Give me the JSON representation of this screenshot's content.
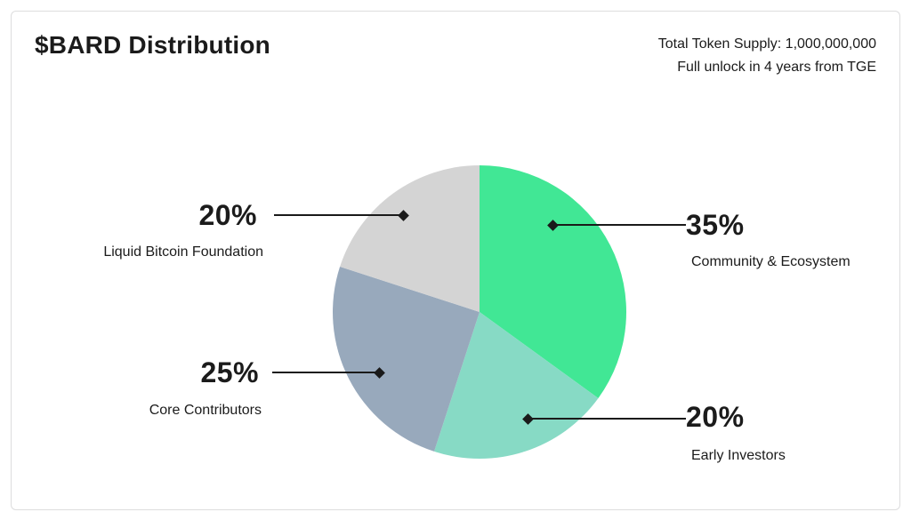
{
  "header": {
    "title": "$BARD Distribution",
    "supply_line1": "Total Token Supply: 1,000,000,000",
    "supply_line2": "Full unlock in 4 years from TGE"
  },
  "chart_data": {
    "type": "pie",
    "title": "$BARD Distribution",
    "start_angle": "12 o'clock",
    "direction": "clockwise",
    "legend_position": "callout-labels",
    "slices": [
      {
        "label": "Community & Ecosystem",
        "value": 35,
        "pct_label": "35%",
        "color": "#41E795"
      },
      {
        "label": "Early Investors",
        "value": 20,
        "pct_label": "20%",
        "color": "#87DAC5"
      },
      {
        "label": "Core Contributors",
        "value": 25,
        "pct_label": "25%",
        "color": "#98A9BC"
      },
      {
        "label": "Liquid Bitcoin Foundation",
        "value": 20,
        "pct_label": "20%",
        "color": "#D4D4D4"
      }
    ],
    "annotations": {
      "total_supply": "1,000,000,000",
      "unlock_note": "Full unlock in 4 years from TGE"
    },
    "colors": {
      "text": "#1b1b1b",
      "leader_line": "#1a1a1a",
      "card_border": "#ddddde",
      "card_background": "#ffffff"
    }
  }
}
